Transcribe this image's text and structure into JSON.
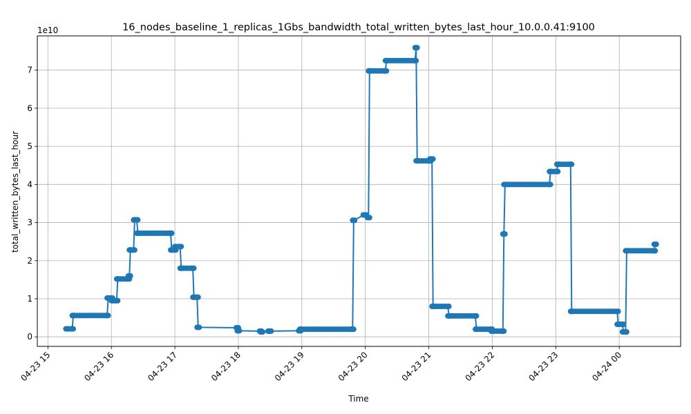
{
  "chart_data": {
    "type": "line",
    "title": "16_nodes_baseline_1_replicas_1Gbs_bandwidth_total_written_bytes_last_hour_10.0.0.41:9100",
    "xlabel": "Time",
    "ylabel": "total_written_bytes_last_hour",
    "y_offset_label": "1e10",
    "y_scale": 10000000000,
    "xlim": [
      "04-23 14:50",
      "04-24 00:58"
    ],
    "ylim": [
      -0.25,
      7.9
    ],
    "grid": true,
    "x_ticks": [
      {
        "label": "04-23 15",
        "time": "04-23 15:00"
      },
      {
        "label": "04-23 16",
        "time": "04-23 16:00"
      },
      {
        "label": "04-23 17",
        "time": "04-23 17:00"
      },
      {
        "label": "04-23 18",
        "time": "04-23 18:00"
      },
      {
        "label": "04-23 19",
        "time": "04-23 19:00"
      },
      {
        "label": "04-23 20",
        "time": "04-23 20:00"
      },
      {
        "label": "04-23 21",
        "time": "04-23 21:00"
      },
      {
        "label": "04-23 22",
        "time": "04-23 22:00"
      },
      {
        "label": "04-23 23",
        "time": "04-23 23:00"
      },
      {
        "label": "04-24 00",
        "time": "04-24 00:00"
      }
    ],
    "y_ticks": [
      {
        "label": "0",
        "value": 0
      },
      {
        "label": "1",
        "value": 1
      },
      {
        "label": "2",
        "value": 2
      },
      {
        "label": "3",
        "value": 3
      },
      {
        "label": "4",
        "value": 4
      },
      {
        "label": "5",
        "value": 5
      },
      {
        "label": "6",
        "value": 6
      },
      {
        "label": "7",
        "value": 7
      }
    ],
    "series": [
      {
        "color": "#1f77b4",
        "x": [
          "04-23 15:18",
          "04-23 15:23",
          "04-23 15:24",
          "04-23 15:56",
          "04-23 15:57",
          "04-23 16:00",
          "04-23 16:01",
          "04-23 16:05",
          "04-23 16:06",
          "04-23 16:16",
          "04-23 16:17",
          "04-23 16:18",
          "04-23 16:21",
          "04-23 16:22",
          "04-23 16:24",
          "04-23 16:25",
          "04-23 16:56",
          "04-23 16:57",
          "04-23 17:00",
          "04-23 17:01",
          "04-23 17:05",
          "04-23 17:06",
          "04-23 17:17",
          "04-23 17:18",
          "04-23 17:21",
          "04-23 17:22",
          "04-23 17:59",
          "04-23 18:00",
          "04-23 18:21",
          "04-23 18:22",
          "04-23 18:29",
          "04-23 18:30",
          "04-23 18:58",
          "04-23 18:59",
          "04-23 19:47",
          "04-23 19:48",
          "04-23 19:49",
          "04-23 19:59",
          "04-23 20:00",
          "04-23 20:03",
          "04-23 20:04",
          "04-23 20:19",
          "04-23 20:20",
          "04-23 20:47",
          "04-23 20:48",
          "04-23 20:49",
          "04-23 21:01",
          "04-23 21:02",
          "04-23 21:03",
          "04-23 21:04",
          "04-23 21:05",
          "04-23 21:18",
          "04-23 21:19",
          "04-23 21:44",
          "04-23 21:45",
          "04-23 21:59",
          "04-23 22:00",
          "04-23 22:10",
          "04-23 22:11",
          "04-23 22:12",
          "04-23 22:54",
          "04-23 22:55",
          "04-23 23:01",
          "04-23 23:02",
          "04-23 23:14",
          "04-23 23:15",
          "04-23 23:58",
          "04-23 23:59",
          "04-24 00:03",
          "04-24 00:04",
          "04-24 00:06",
          "04-24 00:07",
          "04-24 00:33",
          "04-24 00:34"
        ],
        "y": [
          0.21,
          0.21,
          0.56,
          0.56,
          1.02,
          1.02,
          0.95,
          0.95,
          1.52,
          1.52,
          1.6,
          2.28,
          2.28,
          3.07,
          3.07,
          2.72,
          2.72,
          2.28,
          2.28,
          2.37,
          2.37,
          1.8,
          1.8,
          1.04,
          1.04,
          0.25,
          0.24,
          0.16,
          0.15,
          0.13,
          0.15,
          0.15,
          0.16,
          0.2,
          0.2,
          0.2,
          3.06,
          3.2,
          3.2,
          3.13,
          6.98,
          6.98,
          7.25,
          7.25,
          7.59,
          4.62,
          4.62,
          4.67,
          4.67,
          0.8,
          0.8,
          0.8,
          0.55,
          0.55,
          0.2,
          0.2,
          0.15,
          0.15,
          2.7,
          4.0,
          4.0,
          4.34,
          4.34,
          4.53,
          4.53,
          0.67,
          0.67,
          0.33,
          0.33,
          0.13,
          0.13,
          2.26,
          2.26,
          2.43
        ]
      }
    ]
  }
}
